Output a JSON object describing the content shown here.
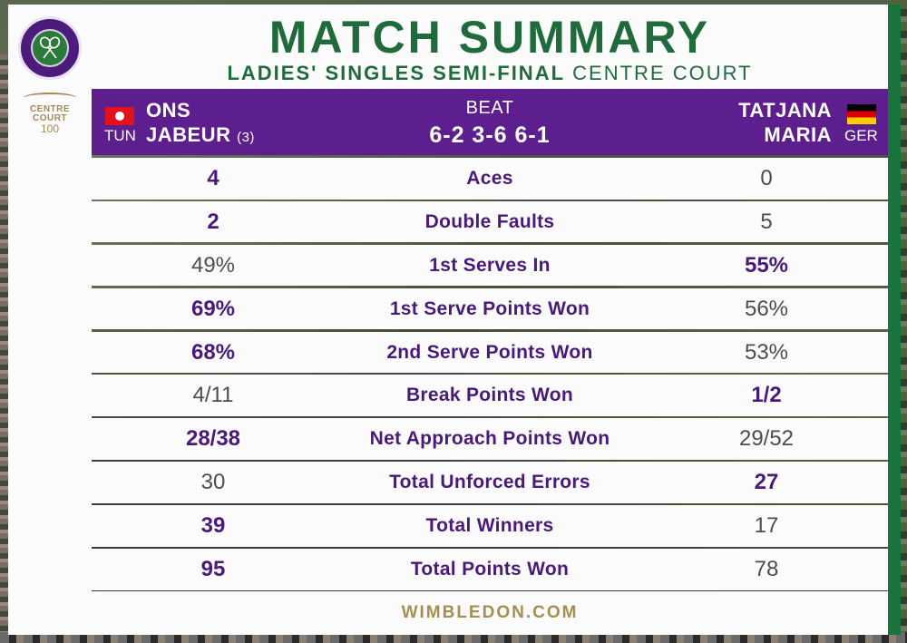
{
  "header": {
    "title": "MATCH SUMMARY",
    "subtitle_event": "LADIES' SINGLES SEMI-FINAL",
    "subtitle_court": "CENTRE COURT"
  },
  "logos": {
    "championships": "THE CHAMPIONSHIPS WIMBLEDON",
    "centre_court_line1": "CENTRE",
    "centre_court_line2": "COURT",
    "centre_court_line3": "100"
  },
  "match": {
    "player1": {
      "first": "ONS",
      "last": "JABEUR",
      "seed": "(3)",
      "country": "TUN"
    },
    "player2": {
      "first": "TATJANA",
      "last": "MARIA",
      "country": "GER"
    },
    "result_word": "BEAT",
    "score": "6-2 3-6 6-1"
  },
  "stats": [
    {
      "label": "Aces",
      "left": "4",
      "right": "0",
      "left_hi": true,
      "right_hi": false
    },
    {
      "label": "Double Faults",
      "left": "2",
      "right": "5",
      "left_hi": true,
      "right_hi": false
    },
    {
      "label": "1st Serves In",
      "left": "49%",
      "right": "55%",
      "left_hi": false,
      "right_hi": true
    },
    {
      "label": "1st Serve Points Won",
      "left": "69%",
      "right": "56%",
      "left_hi": true,
      "right_hi": false
    },
    {
      "label": "2nd Serve Points Won",
      "left": "68%",
      "right": "53%",
      "left_hi": true,
      "right_hi": false
    },
    {
      "label": "Break Points Won",
      "left": "4/11",
      "right": "1/2",
      "left_hi": false,
      "right_hi": true
    },
    {
      "label": "Net Approach Points Won",
      "left": "28/38",
      "right": "29/52",
      "left_hi": true,
      "right_hi": false
    },
    {
      "label": "Total Unforced Errors",
      "left": "30",
      "right": "27",
      "left_hi": false,
      "right_hi": true
    },
    {
      "label": "Total Winners",
      "left": "39",
      "right": "17",
      "left_hi": true,
      "right_hi": false
    },
    {
      "label": "Total Points Won",
      "left": "95",
      "right": "78",
      "left_hi": true,
      "right_hi": false
    }
  ],
  "footer": {
    "site": "WIMBLEDON.COM"
  },
  "colors": {
    "purple": "#5e1f8e",
    "green": "#1f6b3c",
    "gold": "#a48e52"
  }
}
